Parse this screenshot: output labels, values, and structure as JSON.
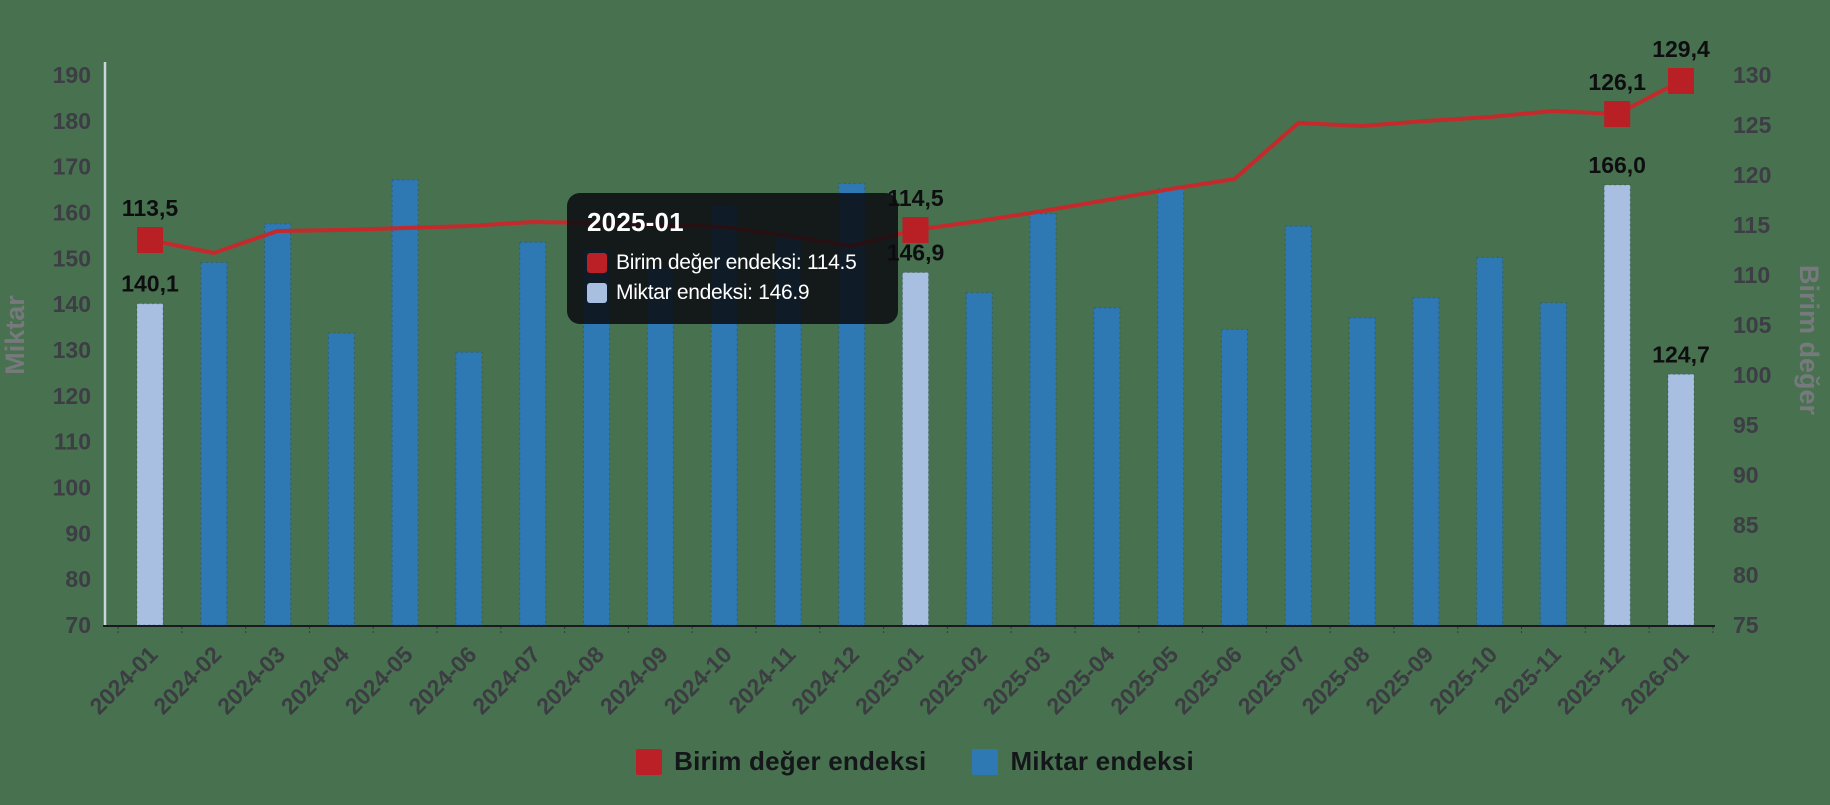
{
  "background": "#48714f",
  "tooltip": {
    "title": "2025-01",
    "rows": [
      {
        "swatch_color": "#bb2027",
        "text": "Birim değer endeksi: 114.5"
      },
      {
        "swatch_color": "#a9bfe2",
        "text": "Miktar endeksi: 146.9"
      }
    ]
  },
  "legend": [
    {
      "label": "Birim değer endeksi",
      "color": "#bb2027"
    },
    {
      "label": "Miktar endeksi",
      "color": "#2e78b4"
    }
  ],
  "chart_data": {
    "type": "bar+line combo",
    "categories": [
      "2024-01",
      "2024-02",
      "2024-03",
      "2024-04",
      "2024-05",
      "2024-06",
      "2024-07",
      "2024-08",
      "2024-09",
      "2024-10",
      "2024-11",
      "2024-12",
      "2025-01",
      "2025-02",
      "2025-03",
      "2025-04",
      "2025-05",
      "2025-06",
      "2025-07",
      "2025-08",
      "2025-09",
      "2025-10",
      "2025-11",
      "2025-12",
      "2026-01"
    ],
    "left_axis": {
      "title": "Miktar",
      "min": 70,
      "max": 190,
      "step": 10,
      "ticks": [
        70,
        80,
        90,
        100,
        110,
        120,
        130,
        140,
        150,
        160,
        170,
        180,
        190
      ]
    },
    "right_axis": {
      "title": "Birim değer",
      "min": 75,
      "max": 130,
      "step": 5,
      "ticks": [
        75,
        80,
        85,
        90,
        95,
        100,
        105,
        110,
        115,
        120,
        125,
        130
      ]
    },
    "series": [
      {
        "name": "Miktar endeksi",
        "type": "bar",
        "axis": "left",
        "color": "#2e78b4",
        "highlight_color": "#a9bfe2",
        "highlight_indices": [
          0,
          12,
          23,
          24
        ],
        "values": [
          140.1,
          149.1,
          157.5,
          133.7,
          167.1,
          129.5,
          153.5,
          152.0,
          148.0,
          161.7,
          155.2,
          166.3,
          146.9,
          142.5,
          159.7,
          139.2,
          165.2,
          134.5,
          157.0,
          137.0,
          141.4,
          150.2,
          140.3,
          166.0,
          124.7
        ],
        "point_labels": {
          "0": "140,1",
          "12": "146,9",
          "23": "166,0",
          "24": "124,7"
        }
      },
      {
        "name": "Birim değer endeksi",
        "type": "line",
        "axis": "right",
        "color": "#c42a2c",
        "marker_color": "#b82025",
        "marker_indices": [
          0,
          12,
          23,
          24
        ],
        "values": [
          113.5,
          112.2,
          114.4,
          114.5,
          114.7,
          114.9,
          115.3,
          115.2,
          115.0,
          114.8,
          113.9,
          112.9,
          114.5,
          115.4,
          116.4,
          117.5,
          118.6,
          119.6,
          125.2,
          124.9,
          125.4,
          125.8,
          126.4,
          126.1,
          129.4
        ],
        "point_labels": {
          "0": "113,5",
          "12": "114,5",
          "23": "126,1",
          "24": "129,4"
        }
      }
    ],
    "legend_position": "bottom-center",
    "grid": false,
    "x_label_rotation": -45
  }
}
